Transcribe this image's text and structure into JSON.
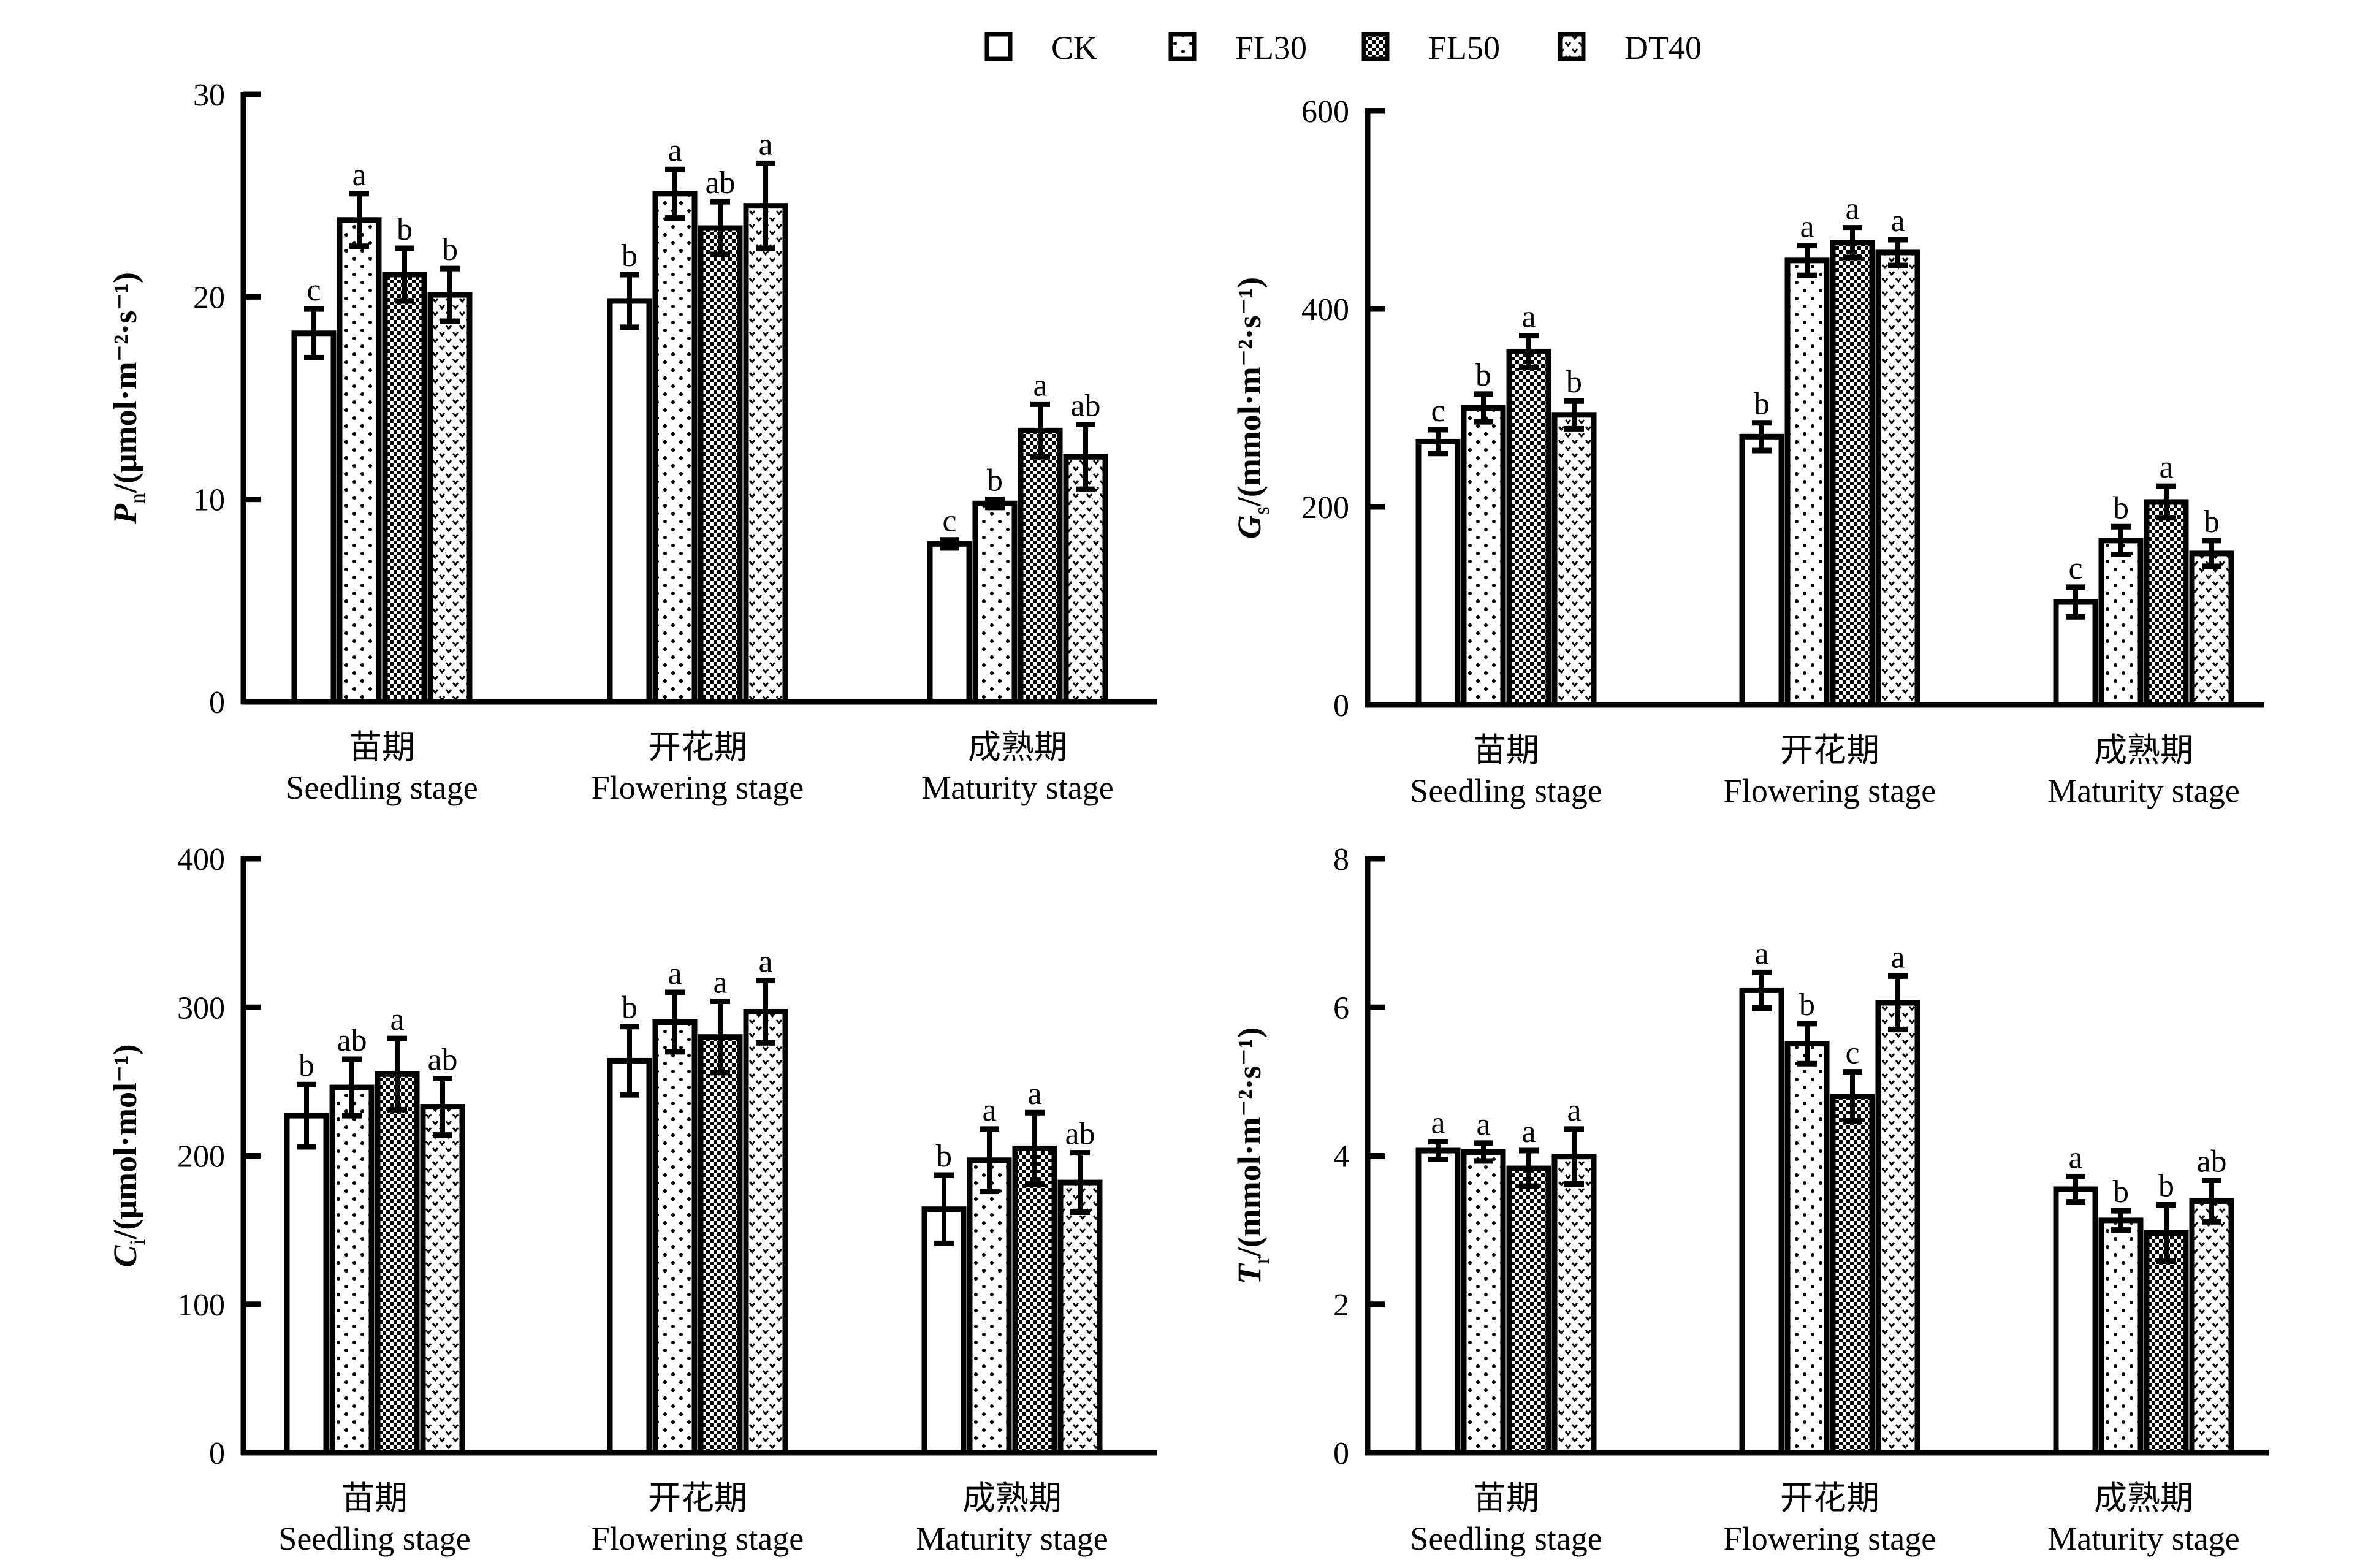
{
  "legend": {
    "items": [
      {
        "name": "CK",
        "pattern": "blank"
      },
      {
        "name": "FL30",
        "pattern": "dots"
      },
      {
        "name": "FL50",
        "pattern": "checker"
      },
      {
        "name": "DT40",
        "pattern": "chevron"
      }
    ]
  },
  "chart_data": [
    {
      "type": "bar",
      "id": "pn",
      "ylabel_main": "P",
      "ylabel_sub": "n",
      "ylabel_unit": "/(μmol·m⁻²·s⁻¹)",
      "ylim": [
        0,
        30
      ],
      "yticks": [
        0,
        10,
        20,
        30
      ],
      "categories_cn": [
        "苗期",
        "开花期",
        "成熟期"
      ],
      "categories": [
        "Seedling stage",
        "Flowering stage",
        "Maturity stage"
      ],
      "series": [
        {
          "name": "CK",
          "values": [
            18.2,
            19.8,
            7.8
          ],
          "errors": [
            1.2,
            1.3,
            0.2
          ],
          "letters": [
            "c",
            "b",
            "c"
          ]
        },
        {
          "name": "FL30",
          "values": [
            23.8,
            25.1,
            9.8
          ],
          "errors": [
            1.3,
            1.2,
            0.2
          ],
          "letters": [
            "a",
            "a",
            "b"
          ]
        },
        {
          "name": "FL50",
          "values": [
            21.1,
            23.4,
            13.4
          ],
          "errors": [
            1.3,
            1.3,
            1.3
          ],
          "letters": [
            "b",
            "ab",
            "a"
          ]
        },
        {
          "name": "DT40",
          "values": [
            20.1,
            24.5,
            12.1
          ],
          "errors": [
            1.3,
            2.1,
            1.6
          ],
          "letters": [
            "b",
            "a",
            "ab"
          ]
        }
      ],
      "grid": false
    },
    {
      "type": "bar",
      "id": "gs",
      "ylabel_main": "G",
      "ylabel_sub": "s",
      "ylabel_unit": "/(mmol·m⁻²·s⁻¹)",
      "ylim": [
        0,
        600
      ],
      "yticks": [
        0,
        200,
        400,
        600
      ],
      "categories_cn": [
        "苗期",
        "开花期",
        "成熟期"
      ],
      "categories": [
        "Seedling stage",
        "Flowering stage",
        "Maturity stage"
      ],
      "series": [
        {
          "name": "CK",
          "values": [
            266,
            271,
            104
          ],
          "errors": [
            12,
            14,
            15
          ],
          "letters": [
            "c",
            "b",
            "c"
          ]
        },
        {
          "name": "FL30",
          "values": [
            300,
            449,
            166
          ],
          "errors": [
            14,
            15,
            14
          ],
          "letters": [
            "b",
            "a",
            "b"
          ]
        },
        {
          "name": "FL50",
          "values": [
            357,
            467,
            205
          ],
          "errors": [
            16,
            15,
            16
          ],
          "letters": [
            "a",
            "a",
            "a"
          ]
        },
        {
          "name": "DT40",
          "values": [
            293,
            457,
            153
          ],
          "errors": [
            14,
            13,
            13
          ],
          "letters": [
            "b",
            "a",
            "b"
          ]
        }
      ],
      "grid": false
    },
    {
      "type": "bar",
      "id": "ci",
      "ylabel_main": "C",
      "ylabel_sub": "i",
      "ylabel_unit": "/(μmol·mol⁻¹)",
      "ylim": [
        0,
        400
      ],
      "yticks": [
        0,
        100,
        200,
        300,
        400
      ],
      "categories_cn": [
        "苗期",
        "开花期",
        "成熟期"
      ],
      "categories": [
        "Seedling stage",
        "Flowering stage",
        "Maturity stage"
      ],
      "series": [
        {
          "name": "CK",
          "values": [
            227,
            264,
            164
          ],
          "errors": [
            21,
            23,
            23
          ],
          "letters": [
            "b",
            "b",
            "b"
          ]
        },
        {
          "name": "FL30",
          "values": [
            246,
            290,
            197
          ],
          "errors": [
            19,
            20,
            21
          ],
          "letters": [
            "ab",
            "a",
            "a"
          ]
        },
        {
          "name": "FL50",
          "values": [
            255,
            280,
            205
          ],
          "errors": [
            24,
            24,
            24
          ],
          "letters": [
            "a",
            "a",
            "a"
          ]
        },
        {
          "name": "DT40",
          "values": [
            233,
            297,
            182
          ],
          "errors": [
            19,
            21,
            20
          ],
          "letters": [
            "ab",
            "a",
            "ab"
          ]
        }
      ],
      "grid": false
    },
    {
      "type": "bar",
      "id": "tr",
      "ylabel_main": "T",
      "ylabel_sub": "r",
      "ylabel_unit": "/(mmol·m⁻²·s⁻¹)",
      "ylim": [
        0,
        8
      ],
      "yticks": [
        0,
        2,
        4,
        6,
        8
      ],
      "categories_cn": [
        "苗期",
        "开花期",
        "成熟期"
      ],
      "categories": [
        "Seedling stage",
        "Flowering stage",
        "Maturity stage"
      ],
      "series": [
        {
          "name": "CK",
          "values": [
            4.07,
            6.23,
            3.55
          ],
          "errors": [
            0.12,
            0.24,
            0.17
          ],
          "letters": [
            "a",
            "a",
            "a"
          ]
        },
        {
          "name": "FL30",
          "values": [
            4.05,
            5.51,
            3.13
          ],
          "errors": [
            0.12,
            0.27,
            0.13
          ],
          "letters": [
            "a",
            "b",
            "b"
          ]
        },
        {
          "name": "FL50",
          "values": [
            3.83,
            4.8,
            2.96
          ],
          "errors": [
            0.24,
            0.33,
            0.38
          ],
          "letters": [
            "a",
            "c",
            "b"
          ]
        },
        {
          "name": "DT40",
          "values": [
            3.99,
            6.06,
            3.39
          ],
          "errors": [
            0.37,
            0.36,
            0.28
          ],
          "letters": [
            "a",
            "a",
            "ab"
          ]
        }
      ],
      "grid": false
    }
  ]
}
